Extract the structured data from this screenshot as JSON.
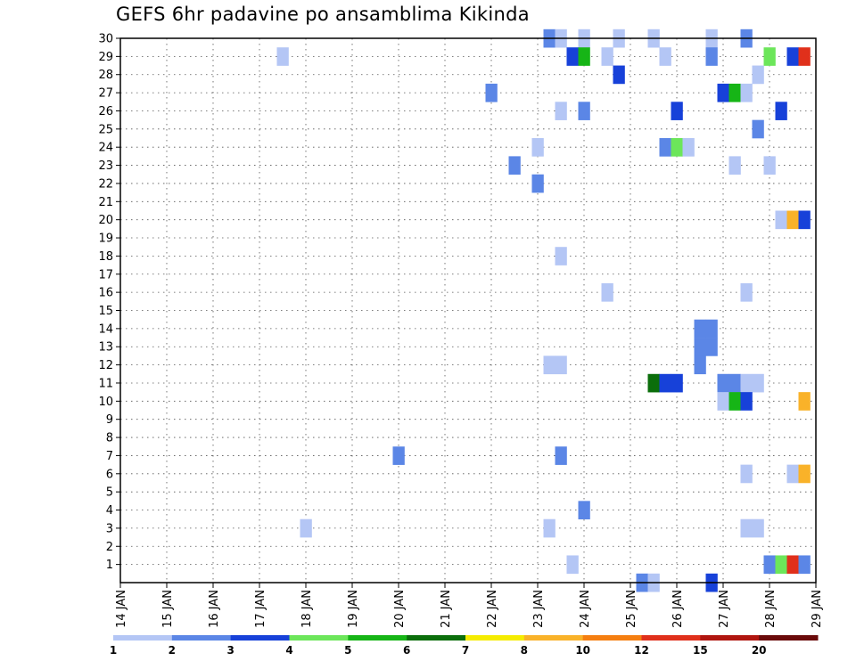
{
  "chart_data": {
    "type": "heatmap",
    "title": "GEFS 6hr padavine po ansamblima Kikinda",
    "xlabel": "",
    "ylabel": "",
    "x_ticks": [
      "14 JAN",
      "15 JAN",
      "16 JAN",
      "17 JAN",
      "18 JAN",
      "19 JAN",
      "20 JAN",
      "21 JAN",
      "22 JAN",
      "23 JAN",
      "24 JAN",
      "25 JAN",
      "26 JAN",
      "27 JAN",
      "28 JAN",
      "29 JAN"
    ],
    "x_range_days": [
      14,
      29
    ],
    "y_ticks": [
      1,
      2,
      3,
      4,
      5,
      6,
      7,
      8,
      9,
      10,
      11,
      12,
      13,
      14,
      15,
      16,
      17,
      18,
      19,
      20,
      21,
      22,
      23,
      24,
      25,
      26,
      27,
      28,
      29,
      30
    ],
    "y_range": [
      0,
      30
    ],
    "grid": true,
    "legend_placement": "bottom",
    "colorbar": {
      "levels": [
        "1",
        "2",
        "3",
        "4",
        "5",
        "6",
        "7",
        "8",
        "10",
        "12",
        "15",
        "20"
      ],
      "colors": [
        "#b4c6f5",
        "#5b86e6",
        "#1741d9",
        "#6ce65a",
        "#16b516",
        "#0b6e0b",
        "#f5ec00",
        "#f9b229",
        "#f57e10",
        "#e0301b",
        "#b0150f",
        "#6a0a0a"
      ]
    },
    "cells_note": "each cell: member, forecast time (day of January, 6-hour step), precipitation class index into colorbar",
    "cells": [
      {
        "member": 30,
        "t": 23.25,
        "c": 1
      },
      {
        "member": 30,
        "t": 23.5,
        "c": 0
      },
      {
        "member": 30,
        "t": 24.0,
        "c": 0
      },
      {
        "member": 30,
        "t": 24.75,
        "c": 0
      },
      {
        "member": 30,
        "t": 25.5,
        "c": 0
      },
      {
        "member": 30,
        "t": 26.75,
        "c": 0
      },
      {
        "member": 30,
        "t": 27.5,
        "c": 1
      },
      {
        "member": 29,
        "t": 17.5,
        "c": 0
      },
      {
        "member": 29,
        "t": 23.75,
        "c": 2
      },
      {
        "member": 29,
        "t": 24.0,
        "c": 4
      },
      {
        "member": 29,
        "t": 24.5,
        "c": 0
      },
      {
        "member": 29,
        "t": 25.75,
        "c": 0
      },
      {
        "member": 29,
        "t": 26.75,
        "c": 1
      },
      {
        "member": 29,
        "t": 28.0,
        "c": 3
      },
      {
        "member": 29,
        "t": 28.5,
        "c": 2
      },
      {
        "member": 29,
        "t": 28.75,
        "c": 9
      },
      {
        "member": 28,
        "t": 24.75,
        "c": 2
      },
      {
        "member": 28,
        "t": 27.75,
        "c": 0
      },
      {
        "member": 27,
        "t": 22.0,
        "c": 1
      },
      {
        "member": 27,
        "t": 27.0,
        "c": 2
      },
      {
        "member": 27,
        "t": 27.25,
        "c": 4
      },
      {
        "member": 27,
        "t": 27.5,
        "c": 0
      },
      {
        "member": 26,
        "t": 23.5,
        "c": 0
      },
      {
        "member": 26,
        "t": 24.0,
        "c": 1
      },
      {
        "member": 26,
        "t": 26.0,
        "c": 2
      },
      {
        "member": 26,
        "t": 28.25,
        "c": 2
      },
      {
        "member": 25,
        "t": 27.75,
        "c": 1
      },
      {
        "member": 24,
        "t": 23.0,
        "c": 0
      },
      {
        "member": 24,
        "t": 25.75,
        "c": 1
      },
      {
        "member": 24,
        "t": 26.0,
        "c": 3
      },
      {
        "member": 24,
        "t": 26.25,
        "c": 0
      },
      {
        "member": 23,
        "t": 22.5,
        "c": 1
      },
      {
        "member": 23,
        "t": 27.25,
        "c": 0
      },
      {
        "member": 23,
        "t": 28.0,
        "c": 0
      },
      {
        "member": 22,
        "t": 23.0,
        "c": 1
      },
      {
        "member": 20,
        "t": 28.25,
        "c": 0
      },
      {
        "member": 20,
        "t": 28.5,
        "c": 7
      },
      {
        "member": 20,
        "t": 28.75,
        "c": 2
      },
      {
        "member": 18,
        "t": 23.5,
        "c": 0
      },
      {
        "member": 16,
        "t": 24.5,
        "c": 0
      },
      {
        "member": 16,
        "t": 27.5,
        "c": 0
      },
      {
        "member": 14,
        "t": 26.5,
        "c": 1
      },
      {
        "member": 14,
        "t": 26.75,
        "c": 1
      },
      {
        "member": 13,
        "t": 26.5,
        "c": 1
      },
      {
        "member": 13,
        "t": 26.75,
        "c": 1
      },
      {
        "member": 12,
        "t": 23.25,
        "c": 0
      },
      {
        "member": 12,
        "t": 23.5,
        "c": 0
      },
      {
        "member": 12,
        "t": 26.5,
        "c": 1
      },
      {
        "member": 11,
        "t": 25.5,
        "c": 5
      },
      {
        "member": 11,
        "t": 25.75,
        "c": 2
      },
      {
        "member": 11,
        "t": 26.0,
        "c": 2
      },
      {
        "member": 11,
        "t": 27.0,
        "c": 1
      },
      {
        "member": 11,
        "t": 27.25,
        "c": 1
      },
      {
        "member": 11,
        "t": 27.5,
        "c": 0
      },
      {
        "member": 11,
        "t": 27.75,
        "c": 0
      },
      {
        "member": 10,
        "t": 27.0,
        "c": 0
      },
      {
        "member": 10,
        "t": 27.25,
        "c": 4
      },
      {
        "member": 10,
        "t": 27.5,
        "c": 2
      },
      {
        "member": 10,
        "t": 28.75,
        "c": 7
      },
      {
        "member": 7,
        "t": 20.0,
        "c": 1
      },
      {
        "member": 7,
        "t": 23.5,
        "c": 1
      },
      {
        "member": 6,
        "t": 27.5,
        "c": 0
      },
      {
        "member": 6,
        "t": 28.5,
        "c": 0
      },
      {
        "member": 6,
        "t": 28.75,
        "c": 7
      },
      {
        "member": 4,
        "t": 24.0,
        "c": 1
      },
      {
        "member": 3,
        "t": 18.0,
        "c": 0
      },
      {
        "member": 3,
        "t": 23.25,
        "c": 0
      },
      {
        "member": 3,
        "t": 27.5,
        "c": 0
      },
      {
        "member": 3,
        "t": 27.75,
        "c": 0
      },
      {
        "member": 1,
        "t": 23.75,
        "c": 0
      },
      {
        "member": 1,
        "t": 28.0,
        "c": 1
      },
      {
        "member": 1,
        "t": 28.25,
        "c": 3
      },
      {
        "member": 1,
        "t": 28.5,
        "c": 9
      },
      {
        "member": 1,
        "t": 28.75,
        "c": 1
      },
      {
        "member": 0,
        "t": 25.25,
        "c": 1
      },
      {
        "member": 0,
        "t": 25.5,
        "c": 0
      },
      {
        "member": 0,
        "t": 26.75,
        "c": 2
      }
    ]
  }
}
